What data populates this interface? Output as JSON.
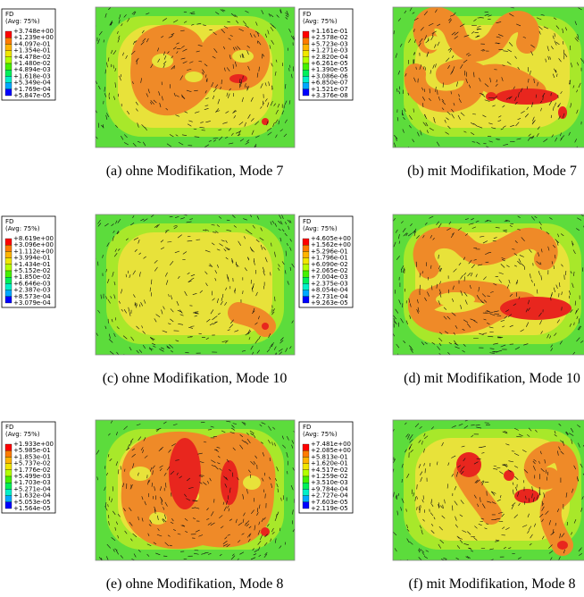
{
  "panels": [
    {
      "legend": {
        "title": "FD",
        "subtitle": "(Avg: 75%)",
        "values": [
          "+3.748e+00",
          "+1.239e+00",
          "+4.097e-01",
          "+1.354e-01",
          "+4.478e-02",
          "+1.480e-02",
          "+4.894e-03",
          "+1.618e-03",
          "+5.349e-04",
          "+1.769e-04",
          "+5.847e-05"
        ]
      },
      "caption": "(a)  ohne Modifikation, Mode 7"
    },
    {
      "legend": {
        "title": "FD",
        "subtitle": "(Avg: 75%)",
        "values": [
          "+1.161e-01",
          "+2.578e-02",
          "+5.723e-03",
          "+1.271e-03",
          "+2.820e-04",
          "+6.261e-05",
          "+1.390e-05",
          "+3.086e-06",
          "+6.850e-07",
          "+1.521e-07",
          "+3.376e-08"
        ]
      },
      "caption": "(b)  mit Modifikation, Mode 7"
    },
    {
      "legend": {
        "title": "FD",
        "subtitle": "(Avg: 75%)",
        "values": [
          "+8.619e+00",
          "+3.096e+00",
          "+1.112e+00",
          "+3.994e-01",
          "+1.434e-01",
          "+5.152e-02",
          "+1.850e-02",
          "+6.646e-03",
          "+2.387e-03",
          "+8.573e-04",
          "+3.079e-04"
        ]
      },
      "caption": "(c)  ohne Modifikation, Mode 10"
    },
    {
      "legend": {
        "title": "FD",
        "subtitle": "(Avg: 75%)",
        "values": [
          "+4.605e+00",
          "+1.562e+00",
          "+5.296e-01",
          "+1.796e-01",
          "+6.090e-02",
          "+2.065e-02",
          "+7.004e-03",
          "+2.375e-03",
          "+8.054e-04",
          "+2.731e-04",
          "+9.263e-05"
        ]
      },
      "caption": "(d)  mit Modifikation, Mode 10"
    },
    {
      "legend": {
        "title": "FD",
        "subtitle": "(Avg: 75%)",
        "values": [
          "+1.933e+00",
          "+5.985e-01",
          "+1.853e-01",
          "+5.737e-02",
          "+1.776e-02",
          "+5.499e-03",
          "+1.703e-03",
          "+5.271e-04",
          "+1.632e-04",
          "+5.053e-05",
          "+1.564e-05"
        ]
      },
      "caption": "(e)  ohne Modifikation, Mode 8"
    },
    {
      "legend": {
        "title": "FD",
        "subtitle": "(Avg: 75%)",
        "values": [
          "+7.481e+00",
          "+2.085e+00",
          "+5.813e-01",
          "+1.620e-01",
          "+4.517e-02",
          "+1.259e-02",
          "+3.510e-03",
          "+9.784e-04",
          "+2.727e-04",
          "+7.603e-05",
          "+2.119e-05"
        ]
      },
      "caption": "(f)  mit Modifikation, Mode 8"
    }
  ]
}
